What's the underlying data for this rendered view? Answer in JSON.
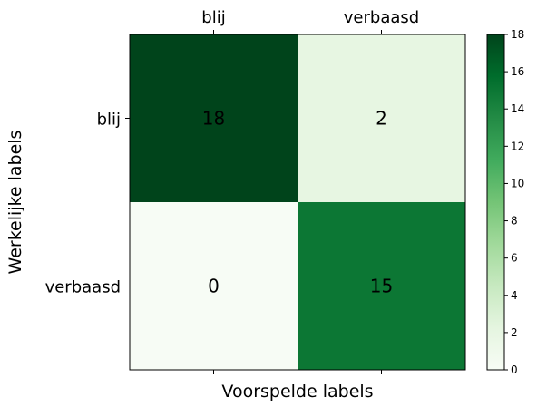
{
  "chart_data": {
    "type": "heatmap",
    "x_categories": [
      "blij",
      "verbaasd"
    ],
    "y_categories": [
      "blij",
      "verbaasd"
    ],
    "values": [
      [
        18,
        2
      ],
      [
        0,
        15
      ]
    ],
    "xlabel": "Voorspelde labels",
    "ylabel": "Werkelijke labels",
    "x_tick_position": "top",
    "colormap": "Greens",
    "color_low": "#f7fcf5",
    "color_high": "#00441b",
    "colorbar": {
      "min": 0,
      "max": 18,
      "ticks": [
        0,
        2,
        4,
        6,
        8,
        10,
        12,
        14,
        16,
        18
      ]
    },
    "grid": false
  }
}
